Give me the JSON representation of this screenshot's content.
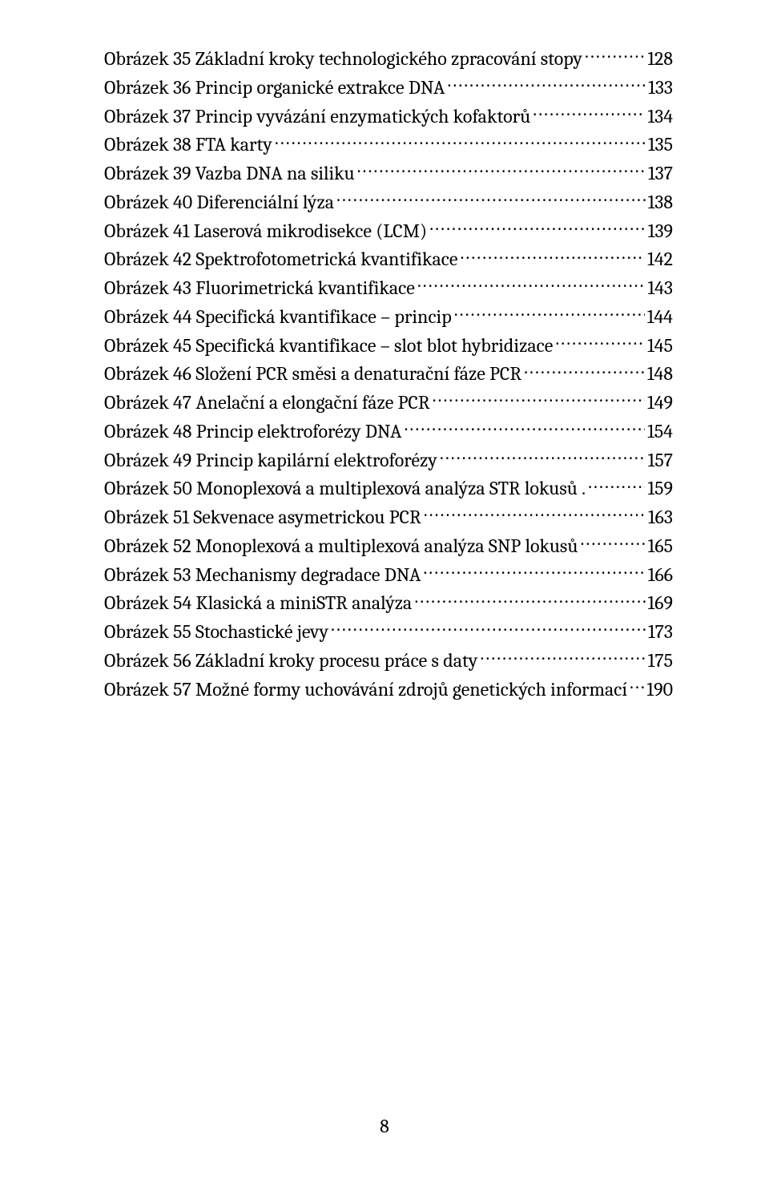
{
  "entries": [
    {
      "label": "Obrázek 35 Základní kroky technologického zpracování stopy",
      "page": "128"
    },
    {
      "label": "Obrázek 36 Princip organické extrakce DNA",
      "page": "133"
    },
    {
      "label": "Obrázek 37 Princip vyvázání enzymatických kofaktorů",
      "page": "134"
    },
    {
      "label": "Obrázek 38 FTA karty",
      "page": "135"
    },
    {
      "label": "Obrázek 39 Vazba DNA na siliku",
      "page": "137"
    },
    {
      "label": "Obrázek 40 Diferenciální lýza",
      "page": "138"
    },
    {
      "label": "Obrázek 41 Laserová mikrodisekce (LCM)",
      "page": "139"
    },
    {
      "label": "Obrázek 42 Spektrofotometrická kvantifikace",
      "page": "142"
    },
    {
      "label": "Obrázek 43 Fluorimetrická kvantifikace",
      "page": "143"
    },
    {
      "label": "Obrázek 44 Specifická kvantifikace – princip",
      "page": "144"
    },
    {
      "label": "Obrázek 45 Specifická kvantifikace – slot blot hybridizace",
      "page": "145"
    },
    {
      "label": "Obrázek 46 Složení PCR směsi a denaturační fáze PCR",
      "page": "148"
    },
    {
      "label": "Obrázek 47 Anelační a elongační fáze PCR",
      "page": "149"
    },
    {
      "label": "Obrázek 48 Princip elektroforézy DNA",
      "page": "154"
    },
    {
      "label": "Obrázek 49 Princip kapilární elektroforézy",
      "page": "157"
    },
    {
      "label": "Obrázek 50 Monoplexová a multiplexová analýza STR lokusů .",
      "page": "159"
    },
    {
      "label": "Obrázek 51 Sekvenace asymetrickou PCR",
      "page": "163"
    },
    {
      "label": "Obrázek 52 Monoplexová a multiplexová analýza SNP lokusů",
      "page": "165"
    },
    {
      "label": "Obrázek 53 Mechanismy degradace DNA",
      "page": "166"
    },
    {
      "label": "Obrázek 54 Klasická a miniSTR analýza",
      "page": "169"
    },
    {
      "label": "Obrázek 55 Stochastické jevy",
      "page": "173"
    },
    {
      "label": "Obrázek 56 Základní kroky procesu práce s daty",
      "page": "175"
    },
    {
      "label": "Obrázek 57 Možné formy uchovávání zdrojů genetických informací",
      "page": "190"
    }
  ],
  "footer": {
    "pageNumber": "8"
  },
  "style": {
    "fontFamily": "Cambria/Georgia serif",
    "fontSizePx": 24,
    "textColor": "#000000",
    "backgroundColor": "#ffffff",
    "pageWidthPx": 960,
    "pageHeightPx": 1501,
    "lineHeight": 1.49,
    "leaderChar": "."
  }
}
